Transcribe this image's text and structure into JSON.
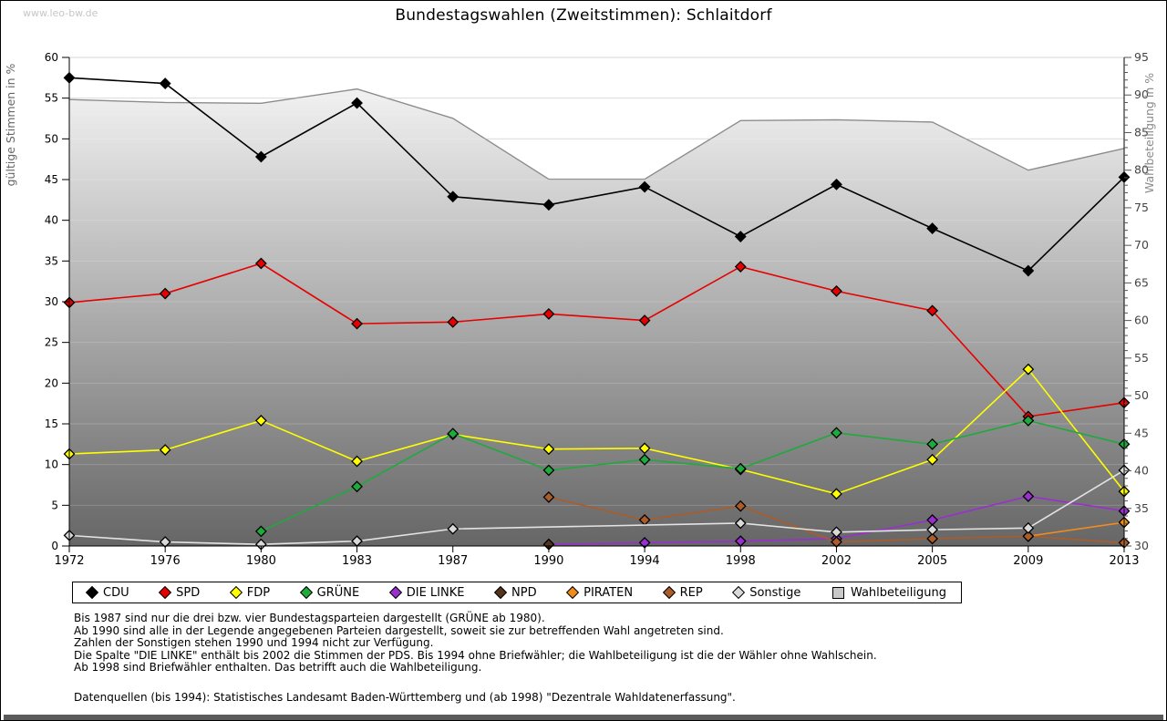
{
  "page": {
    "watermark": "www.leo-bw.de"
  },
  "chart_data": {
    "type": "line",
    "title": "Bundestagswahlen (Zweitstimmen): Schlaitdorf",
    "x_categories": [
      "1972",
      "1976",
      "1980",
      "1983",
      "1987",
      "1990",
      "1994",
      "1998",
      "2002",
      "2005",
      "2009",
      "2013"
    ],
    "left_axis": {
      "label": "gültige Stimmen in %",
      "min": 0,
      "max": 60,
      "step": 5
    },
    "right_axis": {
      "label": "Wahlbeteiligung in %",
      "min": 30,
      "max": 95,
      "step": 5
    },
    "grid": true,
    "legend_position": "bottom",
    "series": [
      {
        "name": "CDU",
        "axis": "left",
        "color": "#000000",
        "marker": "diamond",
        "values": [
          57.5,
          56.8,
          47.8,
          54.4,
          42.9,
          41.9,
          44.1,
          38.0,
          44.4,
          39.0,
          33.8,
          45.3
        ]
      },
      {
        "name": "SPD",
        "axis": "left",
        "color": "#e60000",
        "marker": "diamond",
        "values": [
          29.9,
          31.0,
          34.7,
          27.3,
          27.5,
          28.5,
          27.7,
          34.3,
          31.3,
          28.9,
          15.9,
          17.6
        ]
      },
      {
        "name": "FDP",
        "axis": "left",
        "color": "#ffff00",
        "marker": "diamond",
        "values": [
          11.3,
          11.8,
          15.4,
          10.4,
          13.7,
          11.9,
          12.0,
          9.4,
          6.4,
          10.6,
          21.7,
          6.7
        ]
      },
      {
        "name": "GRÜNE",
        "axis": "left",
        "color": "#1eaa3c",
        "marker": "diamond",
        "values": [
          null,
          null,
          1.8,
          7.3,
          13.8,
          9.3,
          10.6,
          9.5,
          13.9,
          12.5,
          15.4,
          12.5
        ]
      },
      {
        "name": "DIE LINKE",
        "axis": "left",
        "color": "#9a2fd0",
        "marker": "diamond",
        "values": [
          null,
          null,
          null,
          null,
          null,
          0.2,
          0.4,
          0.6,
          0.9,
          3.2,
          6.1,
          4.3
        ]
      },
      {
        "name": "NPD",
        "axis": "left",
        "color": "#53341c",
        "marker": "diamond",
        "values": [
          null,
          null,
          null,
          null,
          null,
          0.2,
          null,
          null,
          null,
          null,
          null,
          null
        ]
      },
      {
        "name": "PIRATEN",
        "axis": "left",
        "color": "#f08c1e",
        "marker": "diamond",
        "values": [
          null,
          null,
          null,
          null,
          null,
          null,
          null,
          null,
          null,
          null,
          1.2,
          2.9
        ]
      },
      {
        "name": "REP",
        "axis": "left",
        "color": "#aa5c2a",
        "marker": "diamond",
        "values": [
          null,
          null,
          null,
          null,
          null,
          6.0,
          3.2,
          4.9,
          0.5,
          0.9,
          1.2,
          0.4
        ]
      },
      {
        "name": "Sonstige",
        "axis": "left",
        "color": "#d9d9d9",
        "marker": "diamond",
        "values": [
          1.3,
          0.5,
          0.2,
          0.6,
          2.1,
          null,
          null,
          2.8,
          1.7,
          2.0,
          2.2,
          9.3
        ]
      },
      {
        "name": "Wahlbeteiligung",
        "axis": "right",
        "color": "#c9c9c9",
        "marker": "square",
        "style": "area",
        "values": [
          89.4,
          89.0,
          88.9,
          90.8,
          86.9,
          78.8,
          78.8,
          86.6,
          86.7,
          86.4,
          80.0,
          82.9
        ]
      }
    ]
  },
  "footnotes": [
    "Bis 1987 sind nur die drei bzw. vier Bundestagsparteien dargestellt (GRÜNE ab 1980).",
    "Ab 1990 sind alle in der Legende angegebenen Parteien dargestellt, soweit sie zur betreffenden Wahl angetreten sind.",
    "Zahlen der Sonstigen stehen 1990 und 1994 nicht zur Verfügung.",
    "Die Spalte \"DIE LINKE\" enthält bis 2002 die Stimmen der PDS. Bis 1994 ohne Briefwähler; die Wahlbeteiligung ist die der Wähler ohne Wahlschein.",
    "Ab 1998 sind Briefwähler enthalten. Das betrifft auch die Wahlbeteiligung."
  ],
  "source_note": "Datenquellen (bis 1994): Statistisches Landesamt Baden-Württemberg und (ab 1998) \"Dezentrale Wahldatenerfassung\".",
  "style": {
    "grid_color": "#d4d4d4",
    "axis_color": "#000000",
    "right_tick_color": "#444444",
    "left_axis_title_color": "#666666",
    "right_axis_title_color": "#8a8a8a",
    "area_gradient_top": "#fbfbfb",
    "area_gradient_bottom": "#666666",
    "turnout_line_color": "#8c8c8c",
    "sonstige_line_color": "#e3e3e3"
  }
}
